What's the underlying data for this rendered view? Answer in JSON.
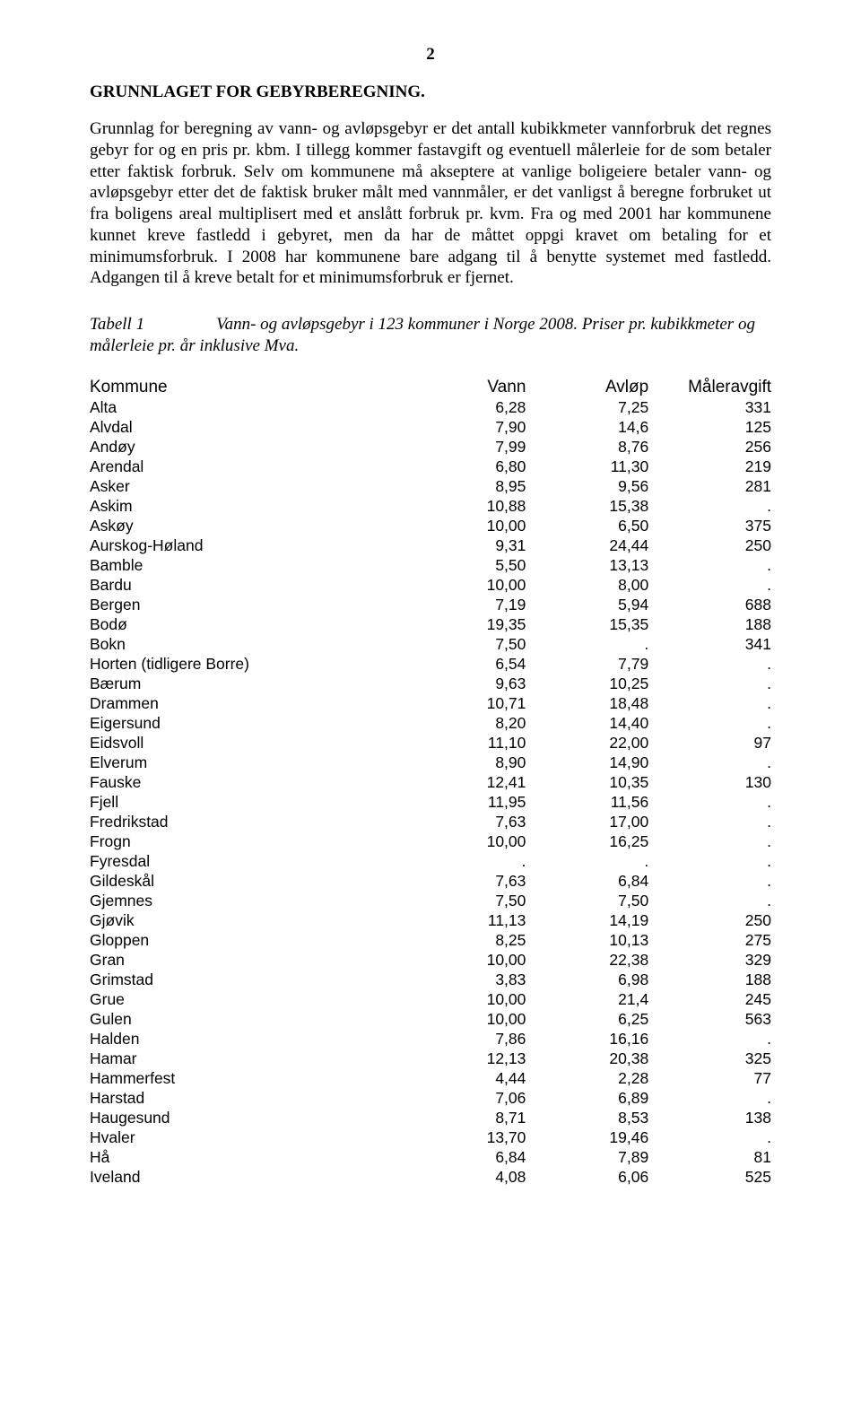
{
  "page_number": "2",
  "heading": "GRUNNLAGET FOR GEBYRBEREGNING.",
  "paragraph": "Grunnlag for beregning av vann- og avløpsgebyr er det antall kubikkmeter vannforbruk det regnes gebyr for og en pris pr. kbm. I tillegg kommer fastavgift og eventuell målerleie for de som betaler etter faktisk forbruk. Selv om kommunene må akseptere at vanlige boligeiere betaler vann- og avløpsgebyr etter det de faktisk bruker målt med vannmåler, er det vanligst å beregne forbruket ut fra boligens areal multiplisert med et anslått forbruk pr. kvm. Fra og med 2001 har kommunene kunnet kreve fastledd i gebyret, men da har de måttet oppgi kravet om betaling for et minimumsforbruk. I 2008 har kommunene bare adgang til å benytte systemet med fastledd. Adgangen til å kreve betalt for et minimumsforbruk er fjernet.",
  "caption_label": "Tabell 1",
  "caption_text": "Vann- og avløpsgebyr i 123 kommuner i Norge 2008. Priser pr. kubikkmeter og målerleie pr. år inklusive Mva.",
  "columns": [
    "Kommune",
    "Vann",
    "Avløp",
    "Måleravgift"
  ],
  "rows": [
    [
      "Alta",
      "6,28",
      "7,25",
      "331"
    ],
    [
      "Alvdal",
      "7,90",
      "14,6",
      "125"
    ],
    [
      "Andøy",
      "7,99",
      "8,76",
      "256"
    ],
    [
      "Arendal",
      "6,80",
      "11,30",
      "219"
    ],
    [
      "Asker",
      "8,95",
      "9,56",
      "281"
    ],
    [
      "Askim",
      "10,88",
      "15,38",
      "."
    ],
    [
      "Askøy",
      "10,00",
      "6,50",
      "375"
    ],
    [
      "Aurskog-Høland",
      "9,31",
      "24,44",
      "250"
    ],
    [
      "Bamble",
      "5,50",
      "13,13",
      "."
    ],
    [
      "Bardu",
      "10,00",
      "8,00",
      "."
    ],
    [
      "Bergen",
      "7,19",
      "5,94",
      "688"
    ],
    [
      "Bodø",
      "19,35",
      "15,35",
      "188"
    ],
    [
      "Bokn",
      "7,50",
      ".",
      "341"
    ],
    [
      "Horten (tidligere Borre)",
      "6,54",
      "7,79",
      "."
    ],
    [
      "Bærum",
      "9,63",
      "10,25",
      "."
    ],
    [
      "Drammen",
      "10,71",
      "18,48",
      "."
    ],
    [
      "Eigersund",
      "8,20",
      "14,40",
      "."
    ],
    [
      "Eidsvoll",
      "11,10",
      "22,00",
      "97"
    ],
    [
      "Elverum",
      "8,90",
      "14,90",
      "."
    ],
    [
      "Fauske",
      "12,41",
      "10,35",
      "130"
    ],
    [
      "Fjell",
      "11,95",
      "11,56",
      "."
    ],
    [
      "Fredrikstad",
      "7,63",
      "17,00",
      "."
    ],
    [
      "Frogn",
      "10,00",
      "16,25",
      "."
    ],
    [
      "Fyresdal",
      ".",
      ".",
      "."
    ],
    [
      "Gildeskål",
      "7,63",
      "6,84",
      "."
    ],
    [
      "Gjemnes",
      "7,50",
      "7,50",
      "."
    ],
    [
      "Gjøvik",
      "11,13",
      "14,19",
      "250"
    ],
    [
      "Gloppen",
      "8,25",
      "10,13",
      "275"
    ],
    [
      "Gran",
      "10,00",
      "22,38",
      "329"
    ],
    [
      "Grimstad",
      "3,83",
      "6,98",
      "188"
    ],
    [
      "Grue",
      "10,00",
      "21,4",
      "245"
    ],
    [
      "Gulen",
      "10,00",
      "6,25",
      "563"
    ],
    [
      "Halden",
      "7,86",
      "16,16",
      "."
    ],
    [
      "Hamar",
      "12,13",
      "20,38",
      "325"
    ],
    [
      "Hammerfest",
      "4,44",
      "2,28",
      "77"
    ],
    [
      "Harstad",
      "7,06",
      "6,89",
      "."
    ],
    [
      "Haugesund",
      "8,71",
      "8,53",
      "138"
    ],
    [
      "Hvaler",
      "13,70",
      "19,46",
      "."
    ],
    [
      "Hå",
      "6,84",
      "7,89",
      "81"
    ],
    [
      "Iveland",
      "4,08",
      "6,06",
      "525"
    ]
  ]
}
